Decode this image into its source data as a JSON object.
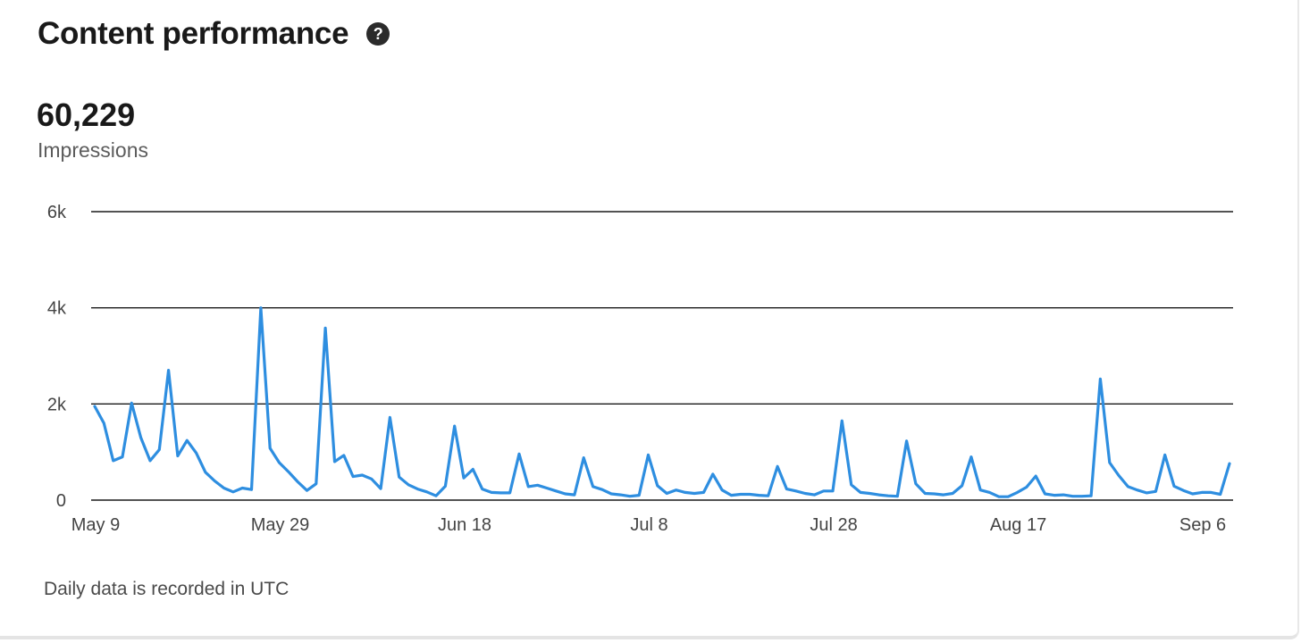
{
  "header": {
    "title": "Content performance",
    "help_icon": "question-circle-icon",
    "help_glyph": "?"
  },
  "metric": {
    "value": "60,229",
    "label": "Impressions"
  },
  "footer": {
    "note": "Daily data is recorded in UTC"
  },
  "colors": {
    "line": "#2e8ee0",
    "grid": "#1a1a1a",
    "text": "#191919"
  },
  "chart_data": {
    "type": "line",
    "title": "",
    "xlabel": "",
    "ylabel": "",
    "ylim": [
      0,
      6000
    ],
    "y_ticks": [
      {
        "value": 0,
        "label": "0"
      },
      {
        "value": 2000,
        "label": "2k"
      },
      {
        "value": 4000,
        "label": "4k"
      },
      {
        "value": 6000,
        "label": "6k"
      }
    ],
    "x_ticks": [
      {
        "index": 0,
        "label": "May 9"
      },
      {
        "index": 20,
        "label": "May 29"
      },
      {
        "index": 40,
        "label": "Jun 18"
      },
      {
        "index": 60,
        "label": "Jul 8"
      },
      {
        "index": 80,
        "label": "Jul 28"
      },
      {
        "index": 100,
        "label": "Aug 17"
      },
      {
        "index": 120,
        "label": "Sep 6"
      }
    ],
    "grid": true,
    "legend": "none",
    "series": [
      {
        "values": [
          1950,
          1600,
          820,
          900,
          2020,
          1300,
          820,
          1050,
          2700,
          920,
          1240,
          980,
          580,
          400,
          250,
          170,
          250,
          220,
          4000,
          1080,
          780,
          590,
          380,
          200,
          340,
          3580,
          800,
          930,
          490,
          520,
          440,
          240,
          1720,
          480,
          320,
          230,
          170,
          90,
          290,
          1540,
          460,
          640,
          230,
          160,
          150,
          150,
          960,
          280,
          310,
          250,
          190,
          130,
          110,
          880,
          280,
          220,
          130,
          110,
          80,
          100,
          940,
          300,
          140,
          210,
          160,
          140,
          160,
          540,
          210,
          100,
          120,
          120,
          100,
          90,
          700,
          230,
          190,
          140,
          110,
          190,
          190,
          1650,
          320,
          160,
          140,
          110,
          90,
          80,
          1230,
          340,
          140,
          130,
          110,
          140,
          300,
          900,
          210,
          160,
          70,
          70,
          160,
          270,
          500,
          130,
          100,
          110,
          80,
          80,
          90,
          2520,
          780,
          510,
          280,
          210,
          150,
          180,
          940,
          290,
          200,
          130,
          160,
          160,
          120,
          760
        ]
      }
    ]
  }
}
